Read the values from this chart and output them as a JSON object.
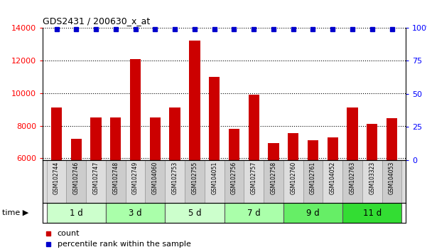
{
  "title": "GDS2431 / 200630_x_at",
  "samples": [
    "GSM102744",
    "GSM102746",
    "GSM102747",
    "GSM102748",
    "GSM102749",
    "GSM104060",
    "GSM102753",
    "GSM102755",
    "GSM104051",
    "GSM102756",
    "GSM102757",
    "GSM102758",
    "GSM102760",
    "GSM102761",
    "GSM104052",
    "GSM102763",
    "GSM103323",
    "GSM104053"
  ],
  "counts": [
    9100,
    7200,
    8500,
    8500,
    12100,
    8500,
    9100,
    13200,
    11000,
    7800,
    9900,
    6950,
    7550,
    7100,
    7300,
    9100,
    8100,
    8450
  ],
  "percentile_ranks": [
    99,
    99,
    99,
    99,
    99,
    99,
    99,
    99,
    99,
    99,
    99,
    99,
    99,
    99,
    99,
    99,
    99,
    99
  ],
  "bar_color": "#cc0000",
  "dot_color": "#0000cc",
  "ylim_left": [
    5900,
    14000
  ],
  "ylim_right": [
    0,
    100
  ],
  "yticks_left": [
    6000,
    8000,
    10000,
    12000,
    14000
  ],
  "yticks_right": [
    0,
    25,
    50,
    75,
    100
  ],
  "groups": [
    {
      "label": "1 d",
      "start": 0,
      "end": 3,
      "color": "#ccffcc"
    },
    {
      "label": "3 d",
      "start": 3,
      "end": 6,
      "color": "#aaffaa"
    },
    {
      "label": "5 d",
      "start": 6,
      "end": 9,
      "color": "#ccffcc"
    },
    {
      "label": "7 d",
      "start": 9,
      "end": 12,
      "color": "#aaffaa"
    },
    {
      "label": "9 d",
      "start": 12,
      "end": 15,
      "color": "#66ee66"
    },
    {
      "label": "11 d",
      "start": 15,
      "end": 18,
      "color": "#33dd33"
    }
  ],
  "legend_count": "count",
  "legend_percentile": "percentile rank within the sample",
  "bg_color": "#ffffff",
  "bar_width": 0.55
}
